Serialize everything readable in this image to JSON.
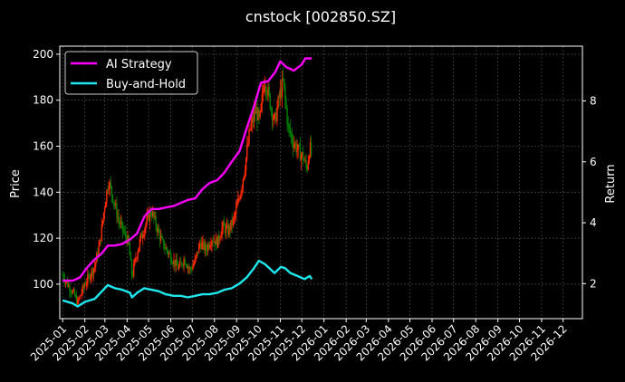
{
  "chart_data": {
    "type": "line",
    "title": "cnstock [002850.SZ]",
    "ylabel_left": "Price",
    "ylabel_right": "Return",
    "x_tick_labels": [
      "2025-01",
      "2025-02",
      "2025-03",
      "2025-04",
      "2025-05",
      "2025-06",
      "2025-07",
      "2025-08",
      "2025-09",
      "2025-10",
      "2025-11",
      "2025-12",
      "2026-01",
      "2026-02",
      "2026-03",
      "2026-04",
      "2026-05",
      "2026-06",
      "2026-07",
      "2026-08",
      "2026-09",
      "2026-10",
      "2026-11",
      "2026-12"
    ],
    "xlim": [
      "2024-12-28",
      "2026-12-28"
    ],
    "ylim_left": [
      85,
      203.5
    ],
    "ylim_right": [
      0.85,
      9.8
    ],
    "left_ticks": [
      100,
      120,
      140,
      160,
      180,
      200
    ],
    "right_ticks": [
      2,
      4,
      6,
      8
    ],
    "grid": true,
    "legend": {
      "placement": "top-left",
      "entries": [
        "AI Strategy",
        "Buy-and-Hold"
      ]
    },
    "colors": {
      "ai_strategy": "#ff00ff",
      "buy_and_hold": "#1ee8ee",
      "candle_up": "#ff2a00",
      "candle_down": "#008000"
    },
    "price_points": [
      [
        "2025-01-01",
        104
      ],
      [
        "2025-01-08",
        100
      ],
      [
        "2025-01-16",
        96
      ],
      [
        "2025-01-22",
        92
      ],
      [
        "2025-02-01",
        100
      ],
      [
        "2025-02-08",
        104
      ],
      [
        "2025-02-15",
        108
      ],
      [
        "2025-02-22",
        118
      ],
      [
        "2025-03-01",
        135
      ],
      [
        "2025-03-06",
        145
      ],
      [
        "2025-03-12",
        138
      ],
      [
        "2025-03-20",
        128
      ],
      [
        "2025-03-28",
        122
      ],
      [
        "2025-04-03",
        118
      ],
      [
        "2025-04-08",
        103
      ],
      [
        "2025-04-12",
        110
      ],
      [
        "2025-04-20",
        120
      ],
      [
        "2025-04-28",
        127
      ],
      [
        "2025-05-05",
        132
      ],
      [
        "2025-05-12",
        125
      ],
      [
        "2025-05-20",
        118
      ],
      [
        "2025-05-28",
        114
      ],
      [
        "2025-06-05",
        110
      ],
      [
        "2025-06-12",
        107
      ],
      [
        "2025-06-20",
        111
      ],
      [
        "2025-06-28",
        106
      ],
      [
        "2025-07-05",
        110
      ],
      [
        "2025-07-12",
        118
      ],
      [
        "2025-07-20",
        115
      ],
      [
        "2025-07-28",
        120
      ],
      [
        "2025-08-05",
        118
      ],
      [
        "2025-08-12",
        125
      ],
      [
        "2025-08-20",
        123
      ],
      [
        "2025-08-28",
        128
      ],
      [
        "2025-09-05",
        138
      ],
      [
        "2025-09-12",
        150
      ],
      [
        "2025-09-20",
        168
      ],
      [
        "2025-09-28",
        176
      ],
      [
        "2025-10-03",
        170
      ],
      [
        "2025-10-10",
        190
      ],
      [
        "2025-10-17",
        180
      ],
      [
        "2025-10-24",
        170
      ],
      [
        "2025-10-31",
        182
      ],
      [
        "2025-11-05",
        188
      ],
      [
        "2025-11-12",
        168
      ],
      [
        "2025-11-19",
        162
      ],
      [
        "2025-11-26",
        158
      ],
      [
        "2025-12-03",
        155
      ],
      [
        "2025-12-08",
        150
      ],
      [
        "2025-12-12",
        160
      ],
      [
        "2025-12-15",
        155
      ]
    ],
    "series": [
      {
        "name": "AI Strategy",
        "axis": "right",
        "points": [
          [
            "2025-01-01",
            2.1
          ],
          [
            "2025-01-15",
            2.1
          ],
          [
            "2025-01-25",
            2.2
          ],
          [
            "2025-02-05",
            2.55
          ],
          [
            "2025-02-15",
            2.8
          ],
          [
            "2025-02-25",
            3.0
          ],
          [
            "2025-03-05",
            3.25
          ],
          [
            "2025-03-15",
            3.25
          ],
          [
            "2025-03-25",
            3.3
          ],
          [
            "2025-04-05",
            3.45
          ],
          [
            "2025-04-15",
            3.65
          ],
          [
            "2025-04-25",
            4.2
          ],
          [
            "2025-05-05",
            4.45
          ],
          [
            "2025-05-15",
            4.45
          ],
          [
            "2025-05-25",
            4.5
          ],
          [
            "2025-06-05",
            4.55
          ],
          [
            "2025-06-15",
            4.65
          ],
          [
            "2025-06-25",
            4.75
          ],
          [
            "2025-07-05",
            4.8
          ],
          [
            "2025-07-15",
            5.1
          ],
          [
            "2025-07-25",
            5.3
          ],
          [
            "2025-08-05",
            5.4
          ],
          [
            "2025-08-15",
            5.65
          ],
          [
            "2025-08-25",
            6.0
          ],
          [
            "2025-09-05",
            6.35
          ],
          [
            "2025-09-15",
            7.1
          ],
          [
            "2025-09-25",
            7.8
          ],
          [
            "2025-10-05",
            8.6
          ],
          [
            "2025-10-15",
            8.65
          ],
          [
            "2025-10-25",
            8.95
          ],
          [
            "2025-11-01",
            9.3
          ],
          [
            "2025-11-10",
            9.1
          ],
          [
            "2025-11-20",
            9.0
          ],
          [
            "2025-12-01",
            9.2
          ],
          [
            "2025-12-06",
            9.4
          ],
          [
            "2025-12-15",
            9.4
          ]
        ]
      },
      {
        "name": "Buy-and-Hold",
        "axis": "right",
        "points": [
          [
            "2025-01-01",
            1.45
          ],
          [
            "2025-01-15",
            1.35
          ],
          [
            "2025-01-22",
            1.25
          ],
          [
            "2025-02-01",
            1.4
          ],
          [
            "2025-02-15",
            1.5
          ],
          [
            "2025-02-25",
            1.75
          ],
          [
            "2025-03-05",
            1.95
          ],
          [
            "2025-03-15",
            1.85
          ],
          [
            "2025-03-25",
            1.8
          ],
          [
            "2025-04-05",
            1.7
          ],
          [
            "2025-04-08",
            1.55
          ],
          [
            "2025-04-15",
            1.7
          ],
          [
            "2025-04-25",
            1.85
          ],
          [
            "2025-05-05",
            1.8
          ],
          [
            "2025-05-15",
            1.75
          ],
          [
            "2025-05-25",
            1.65
          ],
          [
            "2025-06-05",
            1.6
          ],
          [
            "2025-06-15",
            1.6
          ],
          [
            "2025-06-25",
            1.55
          ],
          [
            "2025-07-05",
            1.6
          ],
          [
            "2025-07-15",
            1.65
          ],
          [
            "2025-07-25",
            1.65
          ],
          [
            "2025-08-05",
            1.7
          ],
          [
            "2025-08-15",
            1.8
          ],
          [
            "2025-08-25",
            1.85
          ],
          [
            "2025-09-05",
            2.0
          ],
          [
            "2025-09-15",
            2.2
          ],
          [
            "2025-09-25",
            2.5
          ],
          [
            "2025-10-02",
            2.75
          ],
          [
            "2025-10-10",
            2.65
          ],
          [
            "2025-10-17",
            2.5
          ],
          [
            "2025-10-24",
            2.35
          ],
          [
            "2025-11-02",
            2.55
          ],
          [
            "2025-11-08",
            2.5
          ],
          [
            "2025-11-15",
            2.35
          ],
          [
            "2025-11-25",
            2.25
          ],
          [
            "2025-12-05",
            2.15
          ],
          [
            "2025-12-12",
            2.25
          ],
          [
            "2025-12-15",
            2.15
          ]
        ]
      }
    ]
  }
}
